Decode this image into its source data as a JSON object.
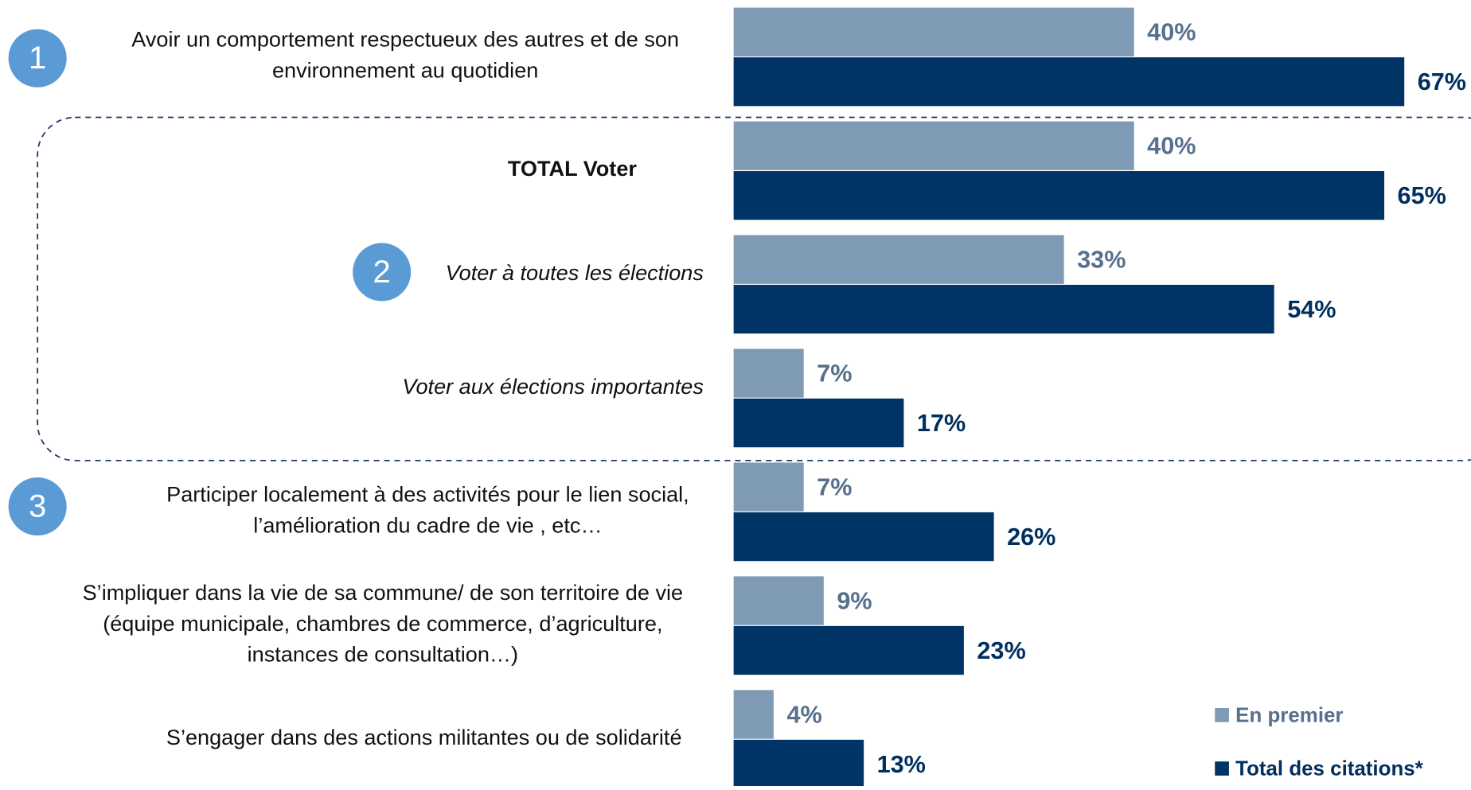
{
  "chart_data": {
    "type": "bar",
    "orientation": "horizontal",
    "categories": [
      [
        "Avoir un comportement respectueux des autres et de son",
        "environnement au quotidien"
      ],
      [
        "TOTAL Voter"
      ],
      [
        "Voter à toutes les élections"
      ],
      [
        "Voter aux élections importantes"
      ],
      [
        "Participer localement à des activités pour le lien social,",
        "l’amélioration du cadre de vie , etc…"
      ],
      [
        "S’impliquer dans la vie de sa commune/ de son territoire de vie",
        "(équipe municipale, chambres de commerce, d’agriculture,",
        "instances de consultation…)"
      ],
      [
        "S’engager dans des actions militantes ou de solidarité"
      ]
    ],
    "series": [
      {
        "name": "En premier",
        "color": "#7f9ab5",
        "values": [
          40,
          40,
          33,
          7,
          7,
          9,
          4
        ],
        "value_labels": [
          "40%",
          "40%",
          "33%",
          "7%",
          "7%",
          "9%",
          "4%"
        ]
      },
      {
        "name": "Total des citations*",
        "color": "#003366",
        "values": [
          67,
          65,
          54,
          17,
          26,
          23,
          13
        ],
        "value_labels": [
          "67%",
          "65%",
          "54%",
          "17%",
          "26%",
          "23%",
          "13%"
        ]
      }
    ],
    "annotations": [
      "1",
      "2",
      "3"
    ],
    "legend": "bottom-right"
  }
}
